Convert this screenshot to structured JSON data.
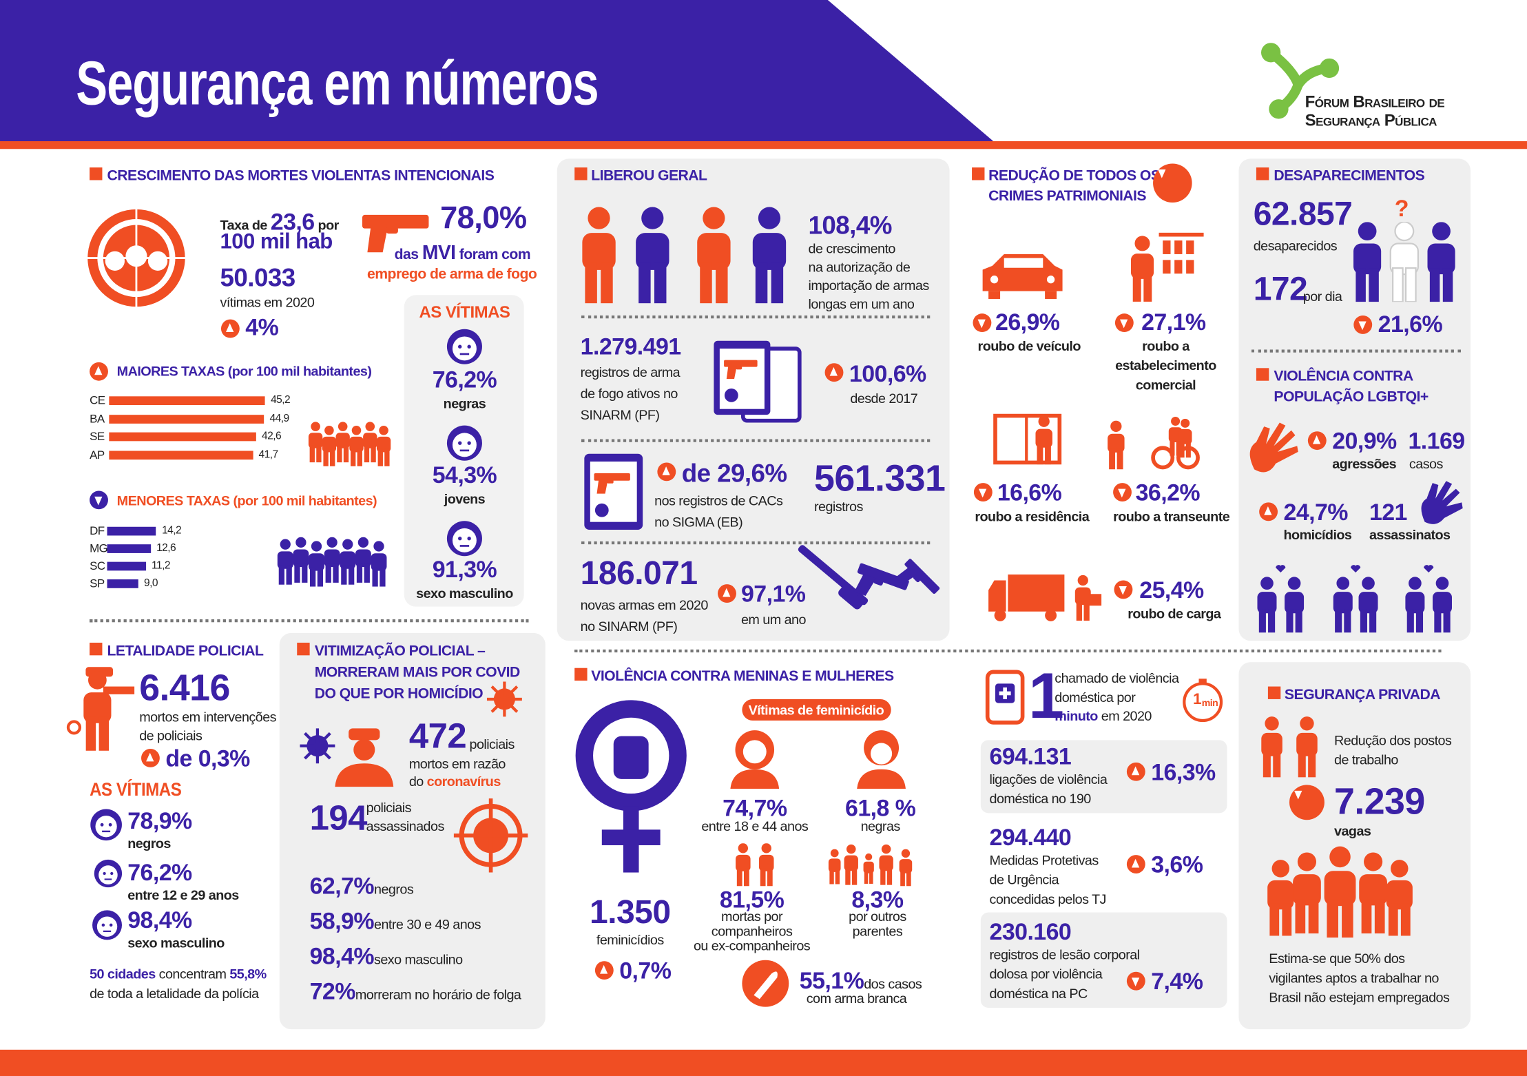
{
  "header": {
    "title": "Segurança em números",
    "logo": [
      "Fórum Brasileiro de",
      "Segurança Pública"
    ]
  },
  "mvi": {
    "title": "CRESCIMENTO DAS MORTES VIOLENTAS INTENCIONAIS",
    "rate": [
      "Taxa de",
      "23,6",
      "por",
      "100 mil hab"
    ],
    "victims": "50.033",
    "victims_label": "vítimas em 2020",
    "growth": "4%",
    "firearm": {
      "value": "78,0%",
      "line1": [
        "das",
        "MVI",
        "foram com"
      ],
      "line2": "emprego de arma de fogo"
    },
    "highest": {
      "title": "MAIORES TAXAS (por 100 mil habitantes)",
      "categories": [
        "CE",
        "BA",
        "SE",
        "AP"
      ],
      "values": [
        45.2,
        44.9,
        42.6,
        41.7
      ],
      "value_labels": [
        "45,2",
        "44,9",
        "42,6",
        "41,7"
      ]
    },
    "lowest": {
      "title": "MENORES TAXAS (por 100 mil habitantes)",
      "categories": [
        "DF",
        "MG",
        "SC",
        "SP"
      ],
      "values": [
        14.2,
        12.6,
        11.2,
        9.0
      ],
      "value_labels": [
        "14,2",
        "12,6",
        "11,2",
        "9,0"
      ]
    },
    "victims_box": {
      "title": "AS VÍTIMAS",
      "items": [
        {
          "value": "76,2%",
          "label": "negras"
        },
        {
          "value": "54,3%",
          "label": "jovens"
        },
        {
          "value": "91,3%",
          "label": "sexo masculino"
        }
      ]
    }
  },
  "liberou": {
    "title": "LIBEROU GERAL",
    "imports": {
      "value": "108,4%",
      "lines": [
        "de crescimento",
        "na autorização de",
        "importação de armas",
        "longas em um ano"
      ]
    },
    "active": {
      "value": "1.279.491",
      "lines": [
        "registros de arma",
        "de fogo ativos no",
        "SINARM (PF)"
      ],
      "growth": "100,6%",
      "growth_label": "desde 2017"
    },
    "cacs": {
      "value": "de 29,6%",
      "lines": [
        "nos registros de CACs",
        "no SIGMA (EB)"
      ],
      "total": "561.331",
      "total_label": "registros"
    },
    "new": {
      "value": "186.071",
      "lines": [
        "novas armas em 2020",
        "no SINARM (PF)"
      ],
      "growth": "97,1%",
      "growth_label": "em um ano"
    }
  },
  "patrimoniais": {
    "title": [
      "REDUÇÃO DE TODOS OS",
      "CRIMES PATRIMONIAIS"
    ],
    "items": [
      {
        "value": "26,9%",
        "lines": [
          "roubo de veículo"
        ]
      },
      {
        "value": "27,1%",
        "lines": [
          "roubo a",
          "estabelecimento",
          "comercial"
        ]
      },
      {
        "value": "16,6%",
        "lines": [
          "roubo a residência"
        ]
      },
      {
        "value": "36,2%",
        "lines": [
          "roubo a transeunte"
        ]
      },
      {
        "value": "25,4%",
        "lines": [
          "roubo de carga"
        ]
      }
    ]
  },
  "desaparecimentos": {
    "title": "DESAPARECIMENTOS",
    "value": "62.857",
    "label": "desaparecidos",
    "mark": "?",
    "per_day": "172",
    "per_day_label": "por dia",
    "change": "21,6%"
  },
  "lgbt": {
    "title": [
      "VIOLÊNCIA CONTRA",
      "POPULAÇÃO LGBTQI+"
    ],
    "items": [
      {
        "value": "20,9%",
        "label": "agressões"
      },
      {
        "value": "1.169",
        "label": "casos"
      },
      {
        "value": "24,7%",
        "label": "homicídios"
      },
      {
        "value": "121",
        "label": "assassinatos"
      }
    ]
  },
  "letalidade": {
    "title": "LETALIDADE POLICIAL",
    "value": "6.416",
    "lines": [
      "mortos em intervenções",
      "de policiais"
    ],
    "change": "de 0,3%",
    "victims_title": "AS VÍTIMAS",
    "victims": [
      {
        "value": "78,9%",
        "label": "negros"
      },
      {
        "value": "76,2%",
        "label": "entre 12 e 29 anos"
      },
      {
        "value": "98,4%",
        "label": "sexo masculino"
      }
    ],
    "note": [
      "50 cidades",
      "concentram",
      "55,8%",
      "de toda a letalidade da polícia"
    ]
  },
  "vitimizacao": {
    "title": [
      "VITIMIZAÇÃO POLICIAL –",
      "MORRERAM MAIS POR COVID",
      "DO QUE POR HOMICÍDIO"
    ],
    "covid": {
      "value": "472",
      "unit": "policiais",
      "line2": "mortos em razão",
      "line3": [
        "do",
        "coronavírus"
      ]
    },
    "killed": {
      "value": "194",
      "lines": [
        "policiais",
        "assassinados"
      ]
    },
    "stats": [
      {
        "value": "62,7%",
        "label": "negros"
      },
      {
        "value": "58,9%",
        "label": "entre 30 e 49 anos"
      },
      {
        "value": "98,4%",
        "label": "sexo masculino"
      },
      {
        "value": "72%",
        "label": "morreram no horário de folga"
      }
    ]
  },
  "mulheres": {
    "title": "VIOLÊNCIA CONTRA MENINAS E MULHERES",
    "badge": "Vítimas de feminicídio",
    "total": "1.350",
    "total_label": "feminicídios",
    "change": "0,7%",
    "items": [
      {
        "value": "74,7%",
        "lines": [
          "entre 18 e 44 anos"
        ]
      },
      {
        "value": "61,8 %",
        "lines": [
          "negras"
        ]
      },
      {
        "value": "81,5%",
        "lines": [
          "mortas por",
          "companheiros",
          "ou ex-companheiros"
        ]
      },
      {
        "value": "8,3%",
        "lines": [
          "por outros",
          "parentes"
        ]
      }
    ],
    "knife": {
      "value": "55,1%",
      "lines": [
        "dos casos",
        "com arma branca"
      ]
    }
  },
  "domestica": {
    "headline": {
      "value": "1",
      "lines": [
        "chamado de violência",
        "doméstica por"
      ],
      "line3": [
        "minuto",
        "em 2020"
      ]
    },
    "clock": [
      "1",
      "min"
    ],
    "blocks": [
      {
        "value": "694.131",
        "lines": [
          "ligações de violência",
          "doméstica no 190"
        ],
        "change": "16,3%"
      },
      {
        "value": "294.440",
        "lines": [
          "Medidas Protetivas",
          "de Urgência",
          "concedidas pelos TJ"
        ],
        "change": "3,6%"
      },
      {
        "value": "230.160",
        "lines": [
          "registros de lesão corporal",
          "dolosa por violência",
          "doméstica na PC"
        ],
        "change": "7,4%"
      }
    ]
  },
  "privada": {
    "title": "SEGURANÇA PRIVADA",
    "lines": [
      "Redução dos postos",
      "de trabalho"
    ],
    "value": "7.239",
    "label": "vagas",
    "note": [
      "Estima-se que 50% dos",
      "vigilantes aptos a trabalhar no",
      "Brasil não estejam empregados"
    ]
  }
}
